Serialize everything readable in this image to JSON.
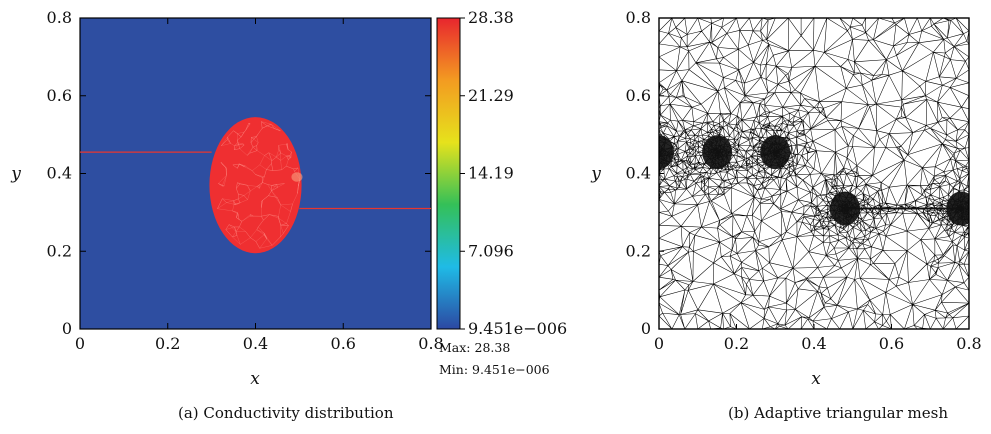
{
  "figure_a": {
    "chart_data": {
      "type": "heatmap",
      "title": "",
      "xlabel": "x",
      "ylabel": "y",
      "xlim": [
        0,
        0.8
      ],
      "ylim": [
        0,
        0.8
      ],
      "xticks": [
        "0",
        "0.2",
        "0.4",
        "0.6",
        "0.8"
      ],
      "yticks": [
        "0",
        "0.2",
        "0.4",
        "0.6",
        "0.8"
      ],
      "background_value": 9.451e-06,
      "inclusion": {
        "shape": "ellipse",
        "center": [
          0.4,
          0.37
        ],
        "semi_axes": [
          0.105,
          0.175
        ],
        "value": 28.38
      },
      "lines": [
        {
          "y": 0.455,
          "x_range": [
            0,
            0.3
          ]
        },
        {
          "y": 0.31,
          "x_range": [
            0.5,
            0.8
          ]
        }
      ],
      "colorbar": {
        "ticks": [
          "28.38",
          "21.29",
          "14.19",
          "7.096",
          "9.451e−006"
        ],
        "colors": [
          "#2c48a2",
          "#1fbbe6",
          "#34c058",
          "#e6e21c",
          "#f39b21",
          "#e8262e"
        ]
      }
    },
    "max_label": "Max: 28.38",
    "min_label": "Min: 9.451e−006",
    "caption": "(a)  Conductivity distribution"
  },
  "figure_b": {
    "chart_data": {
      "type": "other",
      "title": "",
      "xlabel": "x",
      "ylabel": "y",
      "xlim": [
        0,
        0.8
      ],
      "ylim": [
        0,
        0.8
      ],
      "xticks": [
        "0",
        "0.2",
        "0.4",
        "0.6",
        "0.8"
      ],
      "yticks": [
        "0",
        "0.2",
        "0.4",
        "0.6",
        "0.8"
      ],
      "refinement_centers": [
        [
          0.0,
          0.455
        ],
        [
          0.15,
          0.455
        ],
        [
          0.3,
          0.455
        ],
        [
          0.48,
          0.31
        ],
        [
          0.78,
          0.31
        ]
      ],
      "refinement_segments": [
        {
          "y": 0.31,
          "x_range": [
            0.48,
            0.78
          ]
        }
      ]
    },
    "caption": "(b)  Adaptive triangular mesh"
  },
  "colors": {
    "background": "#2e4ea1",
    "inclusion": "#ef2f31",
    "line": "#e8372f",
    "mesh": "#000000"
  }
}
